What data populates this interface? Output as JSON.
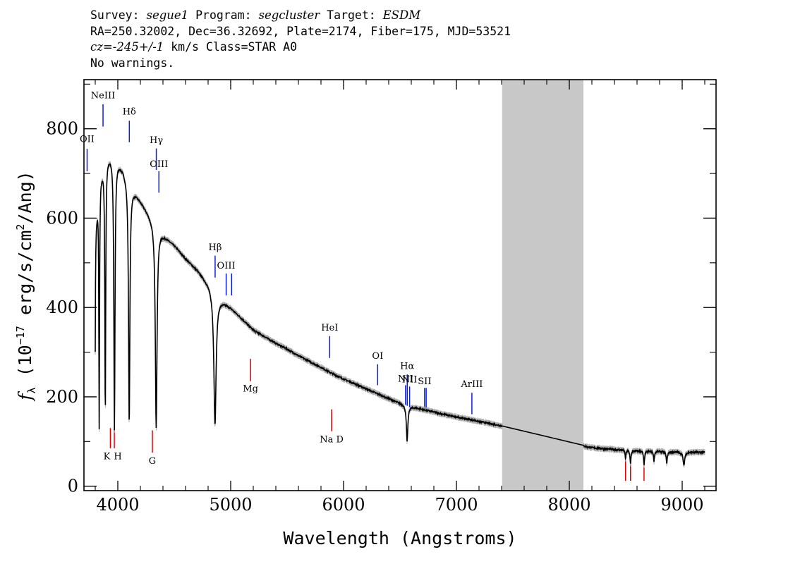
{
  "header": {
    "survey_label": "Survey: ",
    "survey": "segue1",
    "program_label": " Program: ",
    "program": "segcluster",
    "target_label": " Target: ",
    "target": "ESDM",
    "coords": "RA=250.32002, Dec=36.32692, Plate=2174, Fiber=175, MJD=53521",
    "redshift_value": "cz=-245+/-1",
    "redshift_rest": " km/s Class=STAR A0",
    "warnings": "No warnings."
  },
  "chart_data": {
    "type": "line",
    "title": "",
    "xlabel": "Wavelength (Angstroms)",
    "ylabel": "f_λ (10^-17 erg/s/cm^2/Ang)",
    "ylabel_parts": {
      "f": "f",
      "lambda": "λ",
      "pre": " (10",
      "exp1": "−17",
      "mid": " erg/s/cm",
      "exp2": "2",
      "post": "/Ang)"
    },
    "xlim": [
      3700,
      9300
    ],
    "ylim": [
      -10,
      910
    ],
    "x_ticks": [
      4000,
      5000,
      6000,
      7000,
      8000,
      9000
    ],
    "x_tick_labels": [
      "4000",
      "5000",
      "6000",
      "7000",
      "8000",
      "9000"
    ],
    "y_ticks": [
      0,
      200,
      400,
      600,
      800
    ],
    "y_tick_labels": [
      "0",
      "200",
      "400",
      "600",
      "800"
    ],
    "gap_region": [
      7405,
      8125
    ],
    "continuum": [
      [
        3800,
        590
      ],
      [
        3850,
        700
      ],
      [
        3900,
        740
      ],
      [
        3950,
        745
      ],
      [
        4000,
        730
      ],
      [
        4050,
        710
      ],
      [
        4100,
        680
      ],
      [
        4200,
        640
      ],
      [
        4300,
        600
      ],
      [
        4400,
        565
      ],
      [
        4500,
        540
      ],
      [
        4600,
        510
      ],
      [
        4700,
        485
      ],
      [
        4800,
        455
      ],
      [
        4900,
        420
      ],
      [
        5000,
        400
      ],
      [
        5100,
        375
      ],
      [
        5200,
        350
      ],
      [
        5300,
        335
      ],
      [
        5400,
        320
      ],
      [
        5500,
        307
      ],
      [
        5600,
        292
      ],
      [
        5700,
        279
      ],
      [
        5800,
        266
      ],
      [
        5900,
        252
      ],
      [
        6000,
        240
      ],
      [
        6100,
        229
      ],
      [
        6200,
        218
      ],
      [
        6300,
        207
      ],
      [
        6400,
        196
      ],
      [
        6500,
        186
      ],
      [
        6600,
        178
      ],
      [
        6700,
        172
      ],
      [
        6800,
        166
      ],
      [
        6900,
        160
      ],
      [
        7000,
        155
      ],
      [
        7100,
        150
      ],
      [
        7200,
        145
      ],
      [
        7300,
        140
      ],
      [
        7400,
        135
      ],
      [
        8125,
        90
      ],
      [
        8200,
        86
      ],
      [
        8400,
        82
      ],
      [
        8600,
        79
      ],
      [
        8800,
        78
      ],
      [
        9000,
        76
      ],
      [
        9200,
        76
      ]
    ],
    "absorption_lines": [
      [
        3797,
        560,
        3
      ],
      [
        3835,
        530,
        3.5
      ],
      [
        3889,
        570,
        4.5
      ],
      [
        3970,
        610,
        6
      ],
      [
        4101,
        540,
        7
      ],
      [
        4340,
        455,
        9
      ],
      [
        4861,
        295,
        12
      ],
      [
        6563,
        80,
        8
      ],
      [
        8498,
        20,
        4
      ],
      [
        8542,
        30,
        5
      ],
      [
        8662,
        32,
        5
      ],
      [
        8750,
        22,
        5
      ],
      [
        8863,
        25,
        6
      ],
      [
        9015,
        30,
        8
      ]
    ],
    "emission_lines": [
      {
        "label": "NeIII",
        "wave": 3869,
        "y_top": 855,
        "y_bottom": 805,
        "label_y": 868
      },
      {
        "label": "Hδ",
        "wave": 4102,
        "y_top": 818,
        "y_bottom": 770,
        "label_y": 832
      },
      {
        "label": "Hγ",
        "wave": 4341,
        "y_top": 756,
        "y_bottom": 708,
        "label_y": 768
      },
      {
        "label": "OIII",
        "wave": 4364,
        "y_top": 705,
        "y_bottom": 657,
        "label_y": 714
      },
      {
        "label": "Hβ",
        "wave": 4862,
        "y_top": 516,
        "y_bottom": 467,
        "label_y": 528
      },
      {
        "label": "OIII",
        "wave": 4960,
        "y_top": 476,
        "y_bottom": 427,
        "label_y": 487
      },
      {
        "label": "OIII",
        "wave": 5008,
        "y_top": 476,
        "y_bottom": 427,
        "label_y": null
      },
      {
        "label": "HeI",
        "wave": 5877,
        "y_top": 336,
        "y_bottom": 287,
        "label_y": 348
      },
      {
        "label": "OI",
        "wave": 6302,
        "y_top": 273,
        "y_bottom": 226,
        "label_y": 285
      },
      {
        "label": "NII",
        "wave": 6549,
        "y_top": 226,
        "y_bottom": 182,
        "label_y": 234
      },
      {
        "label": "Hα",
        "wave": 6564,
        "y_top": 250,
        "y_bottom": 180,
        "label_y": 262
      },
      {
        "label": "NII",
        "wave": 6585,
        "y_top": 223,
        "y_bottom": 177,
        "label_y": 232
      },
      {
        "label": "SII",
        "wave": 6718,
        "y_top": 220,
        "y_bottom": 173,
        "label_y": 228
      },
      {
        "label": "SII",
        "wave": 6732,
        "y_top": 220,
        "y_bottom": 173,
        "label_y": null
      },
      {
        "label": "ArIII",
        "wave": 7137,
        "y_top": 209,
        "y_bottom": 161,
        "label_y": 222
      },
      {
        "label": "OII",
        "wave": 3728,
        "y_top": 755,
        "y_bottom": 705,
        "label_y": 770
      }
    ],
    "stellar_lines": [
      {
        "label": "K",
        "wave": 3934,
        "y_top": 130,
        "y_bottom": 85,
        "label_y": 60
      },
      {
        "label": "H",
        "wave": 3969,
        "y_top": 130,
        "y_bottom": 85,
        "label_y": 60
      },
      {
        "label": "G",
        "wave": 4306,
        "y_top": 125,
        "y_bottom": 75,
        "label_y": 50
      },
      {
        "label": "Mg",
        "wave": 5176,
        "y_top": 285,
        "y_bottom": 235,
        "label_y": 212
      },
      {
        "label": "Na D",
        "wave": 5894,
        "y_top": 172,
        "y_bottom": 123,
        "label_y": 98
      },
      {
        "label": "",
        "wave": 8498,
        "y_top": 60,
        "y_bottom": 12,
        "label_y": null
      },
      {
        "label": "",
        "wave": 8542,
        "y_top": 60,
        "y_bottom": 12,
        "label_y": null
      },
      {
        "label": "",
        "wave": 8662,
        "y_top": 60,
        "y_bottom": 12,
        "label_y": null
      }
    ],
    "colors": {
      "flux": "#000000",
      "error": "#b0b0b0",
      "gap": "#c8c8c8",
      "emission": "#0a1fcf",
      "stellar": "#e00000"
    }
  }
}
